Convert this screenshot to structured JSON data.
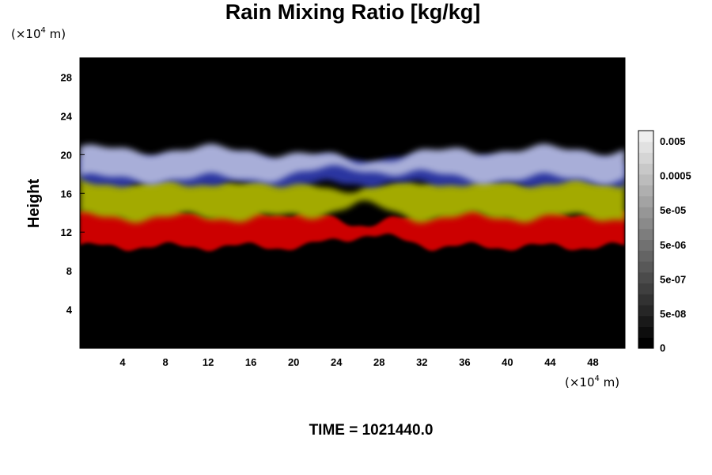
{
  "chart_data": {
    "type": "heatmap",
    "title": "Rain Mixing Ratio [kg/kg]",
    "ylabel": "Height",
    "xlabel": "",
    "y_unit": [
      "(×10",
      "4",
      " m)"
    ],
    "x_unit": [
      "(×10",
      "4",
      " m)"
    ],
    "xlim": [
      0,
      51
    ],
    "ylim": [
      0,
      30
    ],
    "x_ticks": [
      4,
      8,
      12,
      16,
      20,
      24,
      28,
      32,
      36,
      40,
      44,
      48
    ],
    "x_tick_labels": [
      "4",
      "8",
      "12",
      "16",
      "20",
      "24",
      "28",
      "32",
      "36",
      "40",
      "44",
      "48"
    ],
    "y_ticks": [
      4,
      8,
      12,
      16,
      20,
      24,
      28
    ],
    "y_tick_labels": [
      "4",
      "8",
      "12",
      "16",
      "20",
      "24",
      "28"
    ],
    "colorbar": {
      "levels": 20,
      "tick_labels": [
        "0.005",
        "0.0005",
        "5e-05",
        "5e-06",
        "5e-07",
        "5e-08",
        "0"
      ],
      "tick_values": [
        0.005,
        0.0005,
        5e-05,
        5e-06,
        5e-07,
        5e-08,
        0
      ]
    },
    "background_color": "#000000",
    "bands": [
      {
        "name": "upper",
        "color": "#a8aed8",
        "y_range": [
          17.5,
          20.5
        ]
      },
      {
        "name": "blue",
        "color": "#2a34a0",
        "y_range": [
          17,
          19.5
        ]
      },
      {
        "name": "mid",
        "color": "#a3aa00",
        "y_range": [
          13.5,
          17.5
        ]
      },
      {
        "name": "lower",
        "color": "#cc0000",
        "y_range": [
          10.5,
          14
        ]
      }
    ],
    "time_label": "TIME = 1021440.0"
  }
}
